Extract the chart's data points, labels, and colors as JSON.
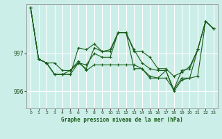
{
  "title": "Graphe pression niveau de la mer (hPa)",
  "bg_color": "#cceee8",
  "grid_color": "#ffffff",
  "line_color": "#1a5c1a",
  "yticks": [
    996,
    997
  ],
  "ylim": [
    995.55,
    998.3
  ],
  "xlim": [
    -0.5,
    23.5
  ],
  "xticks": [
    0,
    1,
    2,
    3,
    4,
    5,
    6,
    7,
    8,
    9,
    10,
    11,
    12,
    13,
    14,
    15,
    16,
    17,
    18,
    19,
    20,
    21,
    22,
    23
  ],
  "series": [
    [
      998.2,
      996.85,
      996.75,
      996.45,
      996.45,
      996.45,
      996.75,
      996.6,
      997.15,
      997.05,
      997.1,
      997.55,
      997.55,
      997.1,
      996.75,
      996.6,
      996.55,
      996.55,
      996.05,
      996.55,
      996.6,
      997.1,
      997.85,
      997.65
    ],
    [
      998.2,
      996.85,
      996.75,
      996.45,
      996.45,
      996.45,
      997.15,
      997.1,
      997.25,
      997.05,
      997.05,
      997.55,
      997.55,
      997.05,
      997.05,
      996.9,
      996.6,
      996.6,
      996.4,
      996.5,
      996.65,
      997.1,
      997.85,
      997.65
    ],
    [
      998.2,
      996.85,
      996.75,
      996.45,
      996.45,
      996.55,
      996.75,
      996.7,
      997.0,
      996.9,
      996.9,
      997.55,
      997.55,
      996.6,
      996.6,
      996.4,
      996.35,
      996.55,
      996.0,
      996.3,
      996.35,
      996.4,
      997.85,
      997.65
    ],
    [
      998.2,
      996.85,
      996.75,
      996.75,
      996.55,
      996.55,
      996.8,
      996.55,
      996.7,
      996.7,
      996.7,
      996.7,
      996.7,
      996.7,
      996.6,
      996.35,
      996.35,
      996.35,
      996.05,
      996.35,
      996.35,
      997.1,
      997.85,
      997.65
    ]
  ]
}
